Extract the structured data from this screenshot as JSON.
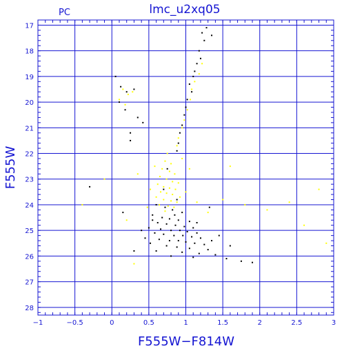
{
  "chart_data": {
    "type": "scatter",
    "title": "lmc_u2xq05",
    "panel_label": "PC",
    "xlabel": "F555W−F814W",
    "ylabel": "F555W",
    "xlim": [
      -1,
      3
    ],
    "ylim": [
      28.3,
      16.8
    ],
    "y_inverted": true,
    "grid": true,
    "x_ticks": [
      "−1",
      "−0.5",
      "0",
      "0.5",
      "1",
      "1.5",
      "2",
      "2.5",
      "3"
    ],
    "y_ticks": [
      "17",
      "18",
      "19",
      "20",
      "21",
      "22",
      "23",
      "24",
      "25",
      "26",
      "27",
      "28"
    ],
    "colors": {
      "axes": "#1414d2",
      "series_a": "#000000",
      "series_b": "#ffff00"
    },
    "series": [
      {
        "color": "#000000",
        "points": [
          [
            1.28,
            17.1
          ],
          [
            1.22,
            17.3
          ],
          [
            1.35,
            17.4
          ],
          [
            1.25,
            17.6
          ],
          [
            1.18,
            18.0
          ],
          [
            1.2,
            18.3
          ],
          [
            1.15,
            18.5
          ],
          [
            1.12,
            18.8
          ],
          [
            1.1,
            19.0
          ],
          [
            1.05,
            19.3
          ],
          [
            1.08,
            19.6
          ],
          [
            1.02,
            19.9
          ],
          [
            1.0,
            20.2
          ],
          [
            0.98,
            20.5
          ],
          [
            0.95,
            20.9
          ],
          [
            0.92,
            21.2
          ],
          [
            0.9,
            21.6
          ],
          [
            0.88,
            21.9
          ],
          [
            0.05,
            19.0
          ],
          [
            0.12,
            19.4
          ],
          [
            0.2,
            19.6
          ],
          [
            0.3,
            19.5
          ],
          [
            0.1,
            20.0
          ],
          [
            0.18,
            20.3
          ],
          [
            0.35,
            20.6
          ],
          [
            0.42,
            20.8
          ],
          [
            0.25,
            21.2
          ],
          [
            0.75,
            22.6
          ],
          [
            0.7,
            23.4
          ],
          [
            0.88,
            23.8
          ],
          [
            0.6,
            24.0
          ],
          [
            0.72,
            24.1
          ],
          [
            0.82,
            24.2
          ],
          [
            0.95,
            24.3
          ],
          [
            0.55,
            24.4
          ],
          [
            0.68,
            24.5
          ],
          [
            0.78,
            24.55
          ],
          [
            0.9,
            24.6
          ],
          [
            1.05,
            24.65
          ],
          [
            0.62,
            24.7
          ],
          [
            0.74,
            24.75
          ],
          [
            0.86,
            24.8
          ],
          [
            0.98,
            24.85
          ],
          [
            1.1,
            24.9
          ],
          [
            0.5,
            24.9
          ],
          [
            0.66,
            24.95
          ],
          [
            0.8,
            25.0
          ],
          [
            0.92,
            25.0
          ],
          [
            1.02,
            25.05
          ],
          [
            1.15,
            25.1
          ],
          [
            0.58,
            25.1
          ],
          [
            0.7,
            25.15
          ],
          [
            0.84,
            25.2
          ],
          [
            0.96,
            25.2
          ],
          [
            1.08,
            25.25
          ],
          [
            1.2,
            25.3
          ],
          [
            0.45,
            25.3
          ],
          [
            0.64,
            25.35
          ],
          [
            0.78,
            25.4
          ],
          [
            0.9,
            25.4
          ],
          [
            1.0,
            25.45
          ],
          [
            1.12,
            25.5
          ],
          [
            1.25,
            25.55
          ],
          [
            0.52,
            25.5
          ],
          [
            0.74,
            25.6
          ],
          [
            0.88,
            25.65
          ],
          [
            1.05,
            25.7
          ],
          [
            1.3,
            25.75
          ],
          [
            0.6,
            25.8
          ],
          [
            0.95,
            25.85
          ],
          [
            1.18,
            25.9
          ],
          [
            1.4,
            25.95
          ],
          [
            0.8,
            26.0
          ],
          [
            1.1,
            26.05
          ],
          [
            1.55,
            26.1
          ],
          [
            1.75,
            26.2
          ],
          [
            1.9,
            26.25
          ],
          [
            0.55,
            24.6
          ],
          [
            0.85,
            24.4
          ],
          [
            1.15,
            24.7
          ],
          [
            0.4,
            25.0
          ],
          [
            1.35,
            25.4
          ],
          [
            0.3,
            25.8
          ],
          [
            1.6,
            25.6
          ],
          [
            1.45,
            25.2
          ],
          [
            -0.3,
            23.3
          ],
          [
            0.25,
            21.5
          ],
          [
            1.32,
            24.1
          ],
          [
            0.15,
            24.3
          ]
        ]
      },
      {
        "color": "#ffff00",
        "points": [
          [
            1.22,
            18.5
          ],
          [
            1.18,
            18.9
          ],
          [
            1.12,
            19.2
          ],
          [
            1.08,
            19.5
          ],
          [
            1.06,
            19.9
          ],
          [
            1.02,
            20.3
          ],
          [
            0.98,
            20.7
          ],
          [
            0.95,
            21.0
          ],
          [
            0.9,
            21.4
          ],
          [
            0.88,
            21.7
          ],
          [
            0.15,
            19.5
          ],
          [
            0.22,
            19.7
          ],
          [
            0.28,
            19.6
          ],
          [
            0.1,
            19.9
          ],
          [
            0.18,
            20.1
          ],
          [
            0.75,
            22.0
          ],
          [
            0.72,
            22.3
          ],
          [
            0.8,
            22.4
          ],
          [
            0.68,
            22.6
          ],
          [
            0.78,
            22.7
          ],
          [
            0.85,
            22.8
          ],
          [
            0.65,
            22.9
          ],
          [
            0.74,
            23.0
          ],
          [
            0.82,
            23.1
          ],
          [
            0.9,
            23.15
          ],
          [
            0.62,
            23.2
          ],
          [
            0.7,
            23.3
          ],
          [
            0.78,
            23.35
          ],
          [
            0.86,
            23.4
          ],
          [
            0.66,
            23.5
          ],
          [
            0.74,
            23.55
          ],
          [
            0.82,
            23.6
          ],
          [
            0.92,
            23.7
          ],
          [
            0.6,
            23.7
          ],
          [
            0.7,
            23.8
          ],
          [
            0.8,
            23.85
          ],
          [
            0.88,
            23.9
          ],
          [
            0.64,
            24.0
          ],
          [
            0.76,
            24.05
          ],
          [
            0.84,
            24.1
          ],
          [
            0.72,
            24.25
          ],
          [
            0.58,
            22.5
          ],
          [
            0.95,
            22.2
          ],
          [
            1.05,
            22.6
          ],
          [
            0.52,
            23.4
          ],
          [
            1.0,
            23.5
          ],
          [
            1.15,
            23.9
          ],
          [
            0.48,
            24.1
          ],
          [
            1.3,
            24.3
          ],
          [
            1.5,
            23.8
          ],
          [
            1.8,
            24.0
          ],
          [
            2.1,
            24.2
          ],
          [
            2.4,
            23.9
          ],
          [
            2.8,
            23.4
          ],
          [
            0.35,
            22.8
          ],
          [
            0.2,
            24.6
          ],
          [
            -0.4,
            24.0
          ],
          [
            0.3,
            26.3
          ],
          [
            1.6,
            22.5
          ],
          [
            2.6,
            24.8
          ],
          [
            2.9,
            25.5
          ],
          [
            -0.1,
            23.0
          ]
        ]
      }
    ]
  }
}
